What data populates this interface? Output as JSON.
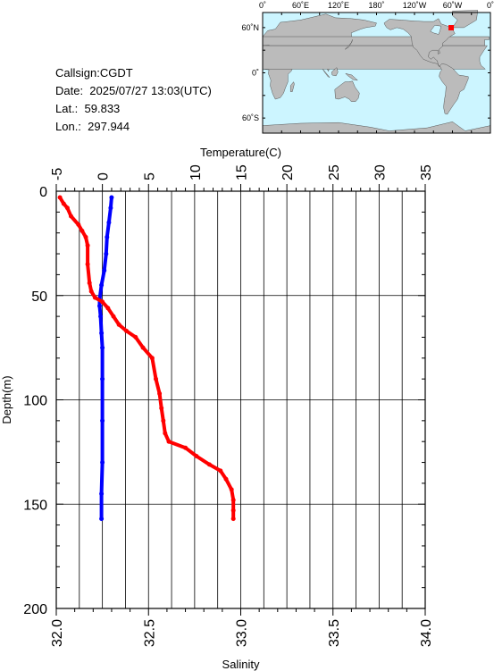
{
  "info": {
    "callsign": "Callsign:CGDT",
    "date": "Date:  2025/07/27 13:03(UTC)",
    "lat": "Lat.:  59.833",
    "lon": "Lon.:  297.944"
  },
  "map": {
    "top_labels": [
      "0˚",
      "60˚E",
      "120˚E",
      "180˚",
      "120˚W",
      "60˚W",
      "0˚"
    ],
    "left_labels": [
      "60˚N",
      "0˚",
      "60˚S"
    ],
    "ocean_color": "#ccf5ff",
    "land_color": "#bbbbbb",
    "marker_color": "#ff0000",
    "marker": {
      "lon": 297.944,
      "lat": 59.833
    }
  },
  "chart_data": {
    "type": "line",
    "ylabel": "Depth(m)",
    "y_ticks": [
      "0",
      "50",
      "100",
      "150",
      "200"
    ],
    "ylim": [
      0,
      200
    ],
    "y_inverted": true,
    "top_axis": {
      "label": "Temperature(C)",
      "ticks": [
        "-5",
        "0",
        "5",
        "10",
        "15",
        "20",
        "25",
        "30",
        "35"
      ],
      "range": [
        -5,
        35
      ]
    },
    "bottom_axis": {
      "label": "Salinity",
      "ticks": [
        "32.0",
        "32.5",
        "33.0",
        "33.5",
        "34.0"
      ],
      "range": [
        32.0,
        34.0
      ]
    },
    "grid": true,
    "series": [
      {
        "axis": "top",
        "color": "#0000ff",
        "points": [
          {
            "x": 1.0,
            "y": 3
          },
          {
            "x": 0.9,
            "y": 8
          },
          {
            "x": 0.7,
            "y": 15
          },
          {
            "x": 0.5,
            "y": 22
          },
          {
            "x": 0.4,
            "y": 30
          },
          {
            "x": 0.2,
            "y": 38
          },
          {
            "x": -0.1,
            "y": 45
          },
          {
            "x": -0.3,
            "y": 52
          },
          {
            "x": -0.3,
            "y": 55
          },
          {
            "x": -0.2,
            "y": 60
          },
          {
            "x": -0.1,
            "y": 68
          },
          {
            "x": 0.0,
            "y": 75
          },
          {
            "x": 0.0,
            "y": 90
          },
          {
            "x": 0.0,
            "y": 110
          },
          {
            "x": 0.0,
            "y": 130
          },
          {
            "x": -0.1,
            "y": 145
          },
          {
            "x": -0.1,
            "y": 157
          }
        ]
      },
      {
        "axis": "bottom",
        "color": "#ff0000",
        "points": [
          {
            "x": 32.02,
            "y": 3
          },
          {
            "x": 32.04,
            "y": 6
          },
          {
            "x": 32.06,
            "y": 8
          },
          {
            "x": 32.08,
            "y": 12
          },
          {
            "x": 32.12,
            "y": 16
          },
          {
            "x": 32.14,
            "y": 19
          },
          {
            "x": 32.16,
            "y": 22
          },
          {
            "x": 32.17,
            "y": 26
          },
          {
            "x": 32.17,
            "y": 35
          },
          {
            "x": 32.18,
            "y": 44
          },
          {
            "x": 32.19,
            "y": 48
          },
          {
            "x": 32.21,
            "y": 51
          },
          {
            "x": 32.25,
            "y": 53
          },
          {
            "x": 32.28,
            "y": 56
          },
          {
            "x": 32.31,
            "y": 60
          },
          {
            "x": 32.34,
            "y": 64
          },
          {
            "x": 32.38,
            "y": 67
          },
          {
            "x": 32.43,
            "y": 70
          },
          {
            "x": 32.47,
            "y": 75
          },
          {
            "x": 32.52,
            "y": 80
          },
          {
            "x": 32.54,
            "y": 90
          },
          {
            "x": 32.56,
            "y": 97
          },
          {
            "x": 32.57,
            "y": 104
          },
          {
            "x": 32.58,
            "y": 110
          },
          {
            "x": 32.59,
            "y": 116
          },
          {
            "x": 32.61,
            "y": 120
          },
          {
            "x": 32.7,
            "y": 123
          },
          {
            "x": 32.76,
            "y": 127
          },
          {
            "x": 32.83,
            "y": 131
          },
          {
            "x": 32.89,
            "y": 134
          },
          {
            "x": 32.92,
            "y": 138
          },
          {
            "x": 32.95,
            "y": 143
          },
          {
            "x": 32.96,
            "y": 148
          },
          {
            "x": 32.96,
            "y": 153
          },
          {
            "x": 32.96,
            "y": 157
          }
        ]
      }
    ]
  }
}
